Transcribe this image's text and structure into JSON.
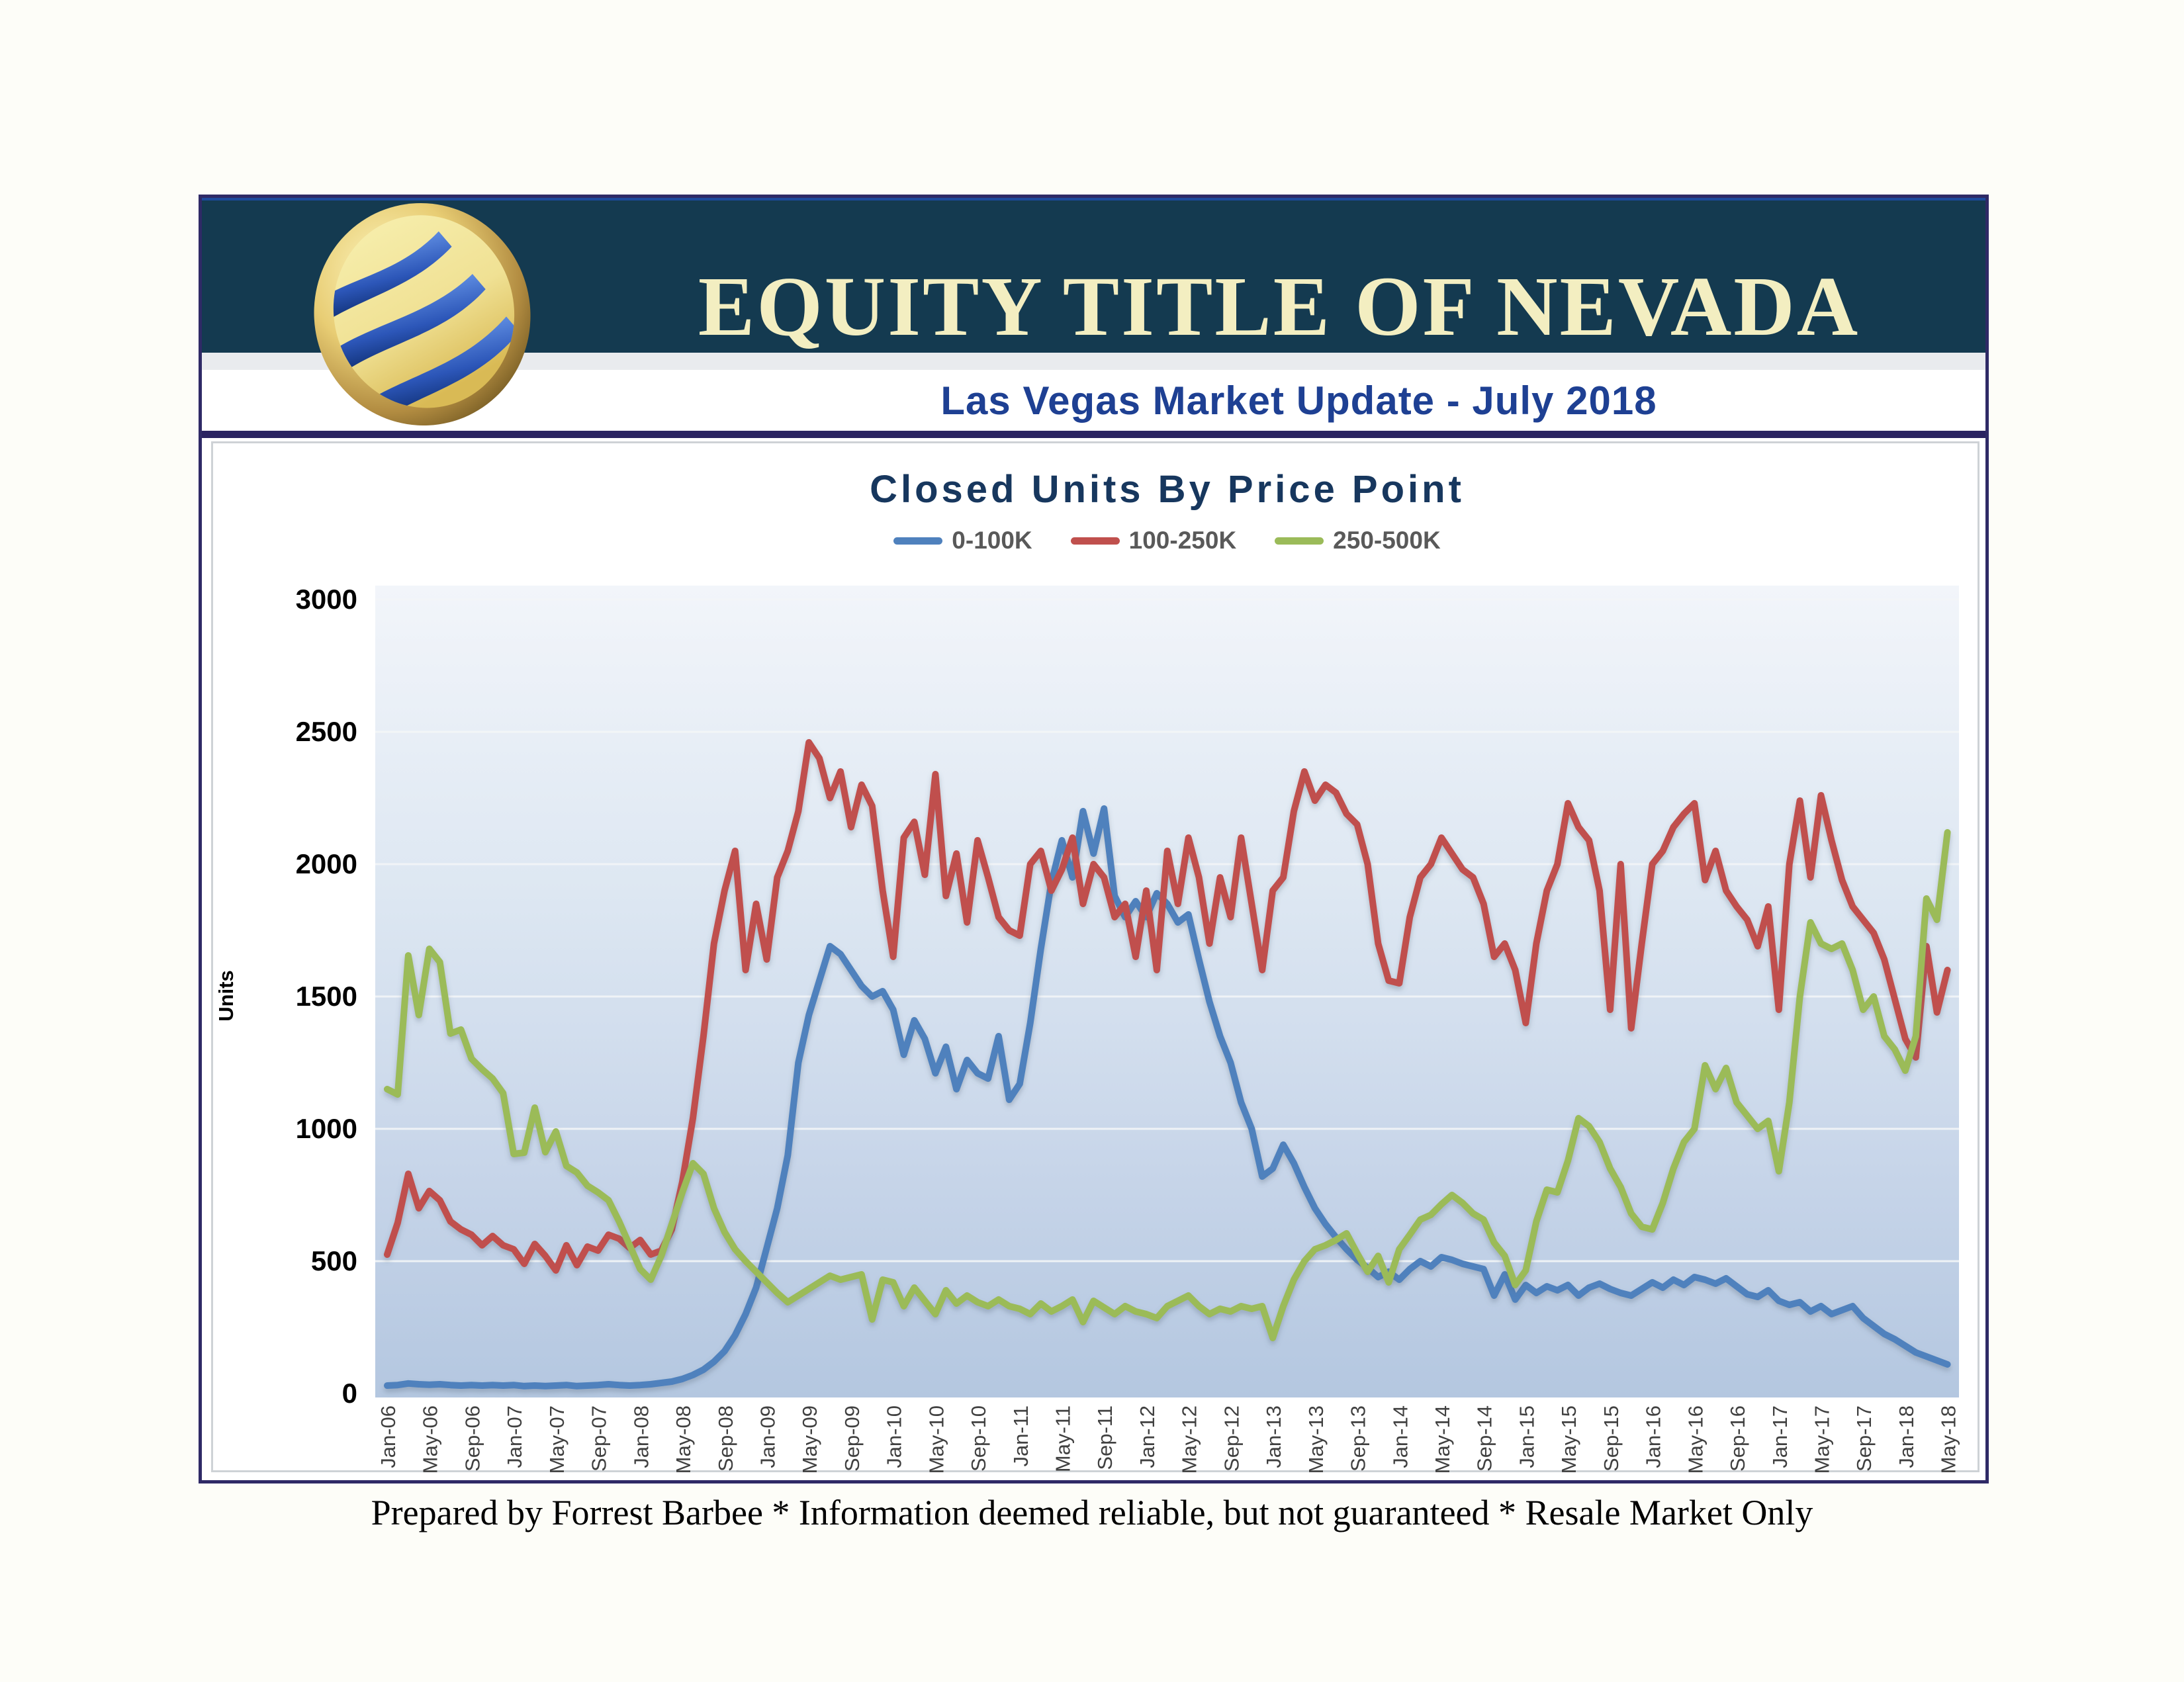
{
  "header": {
    "company": "EQUITY TITLE OF NEVADA",
    "subtitle": "Las Vegas Market Update - July 2018"
  },
  "footer": {
    "text": "Prepared by Forrest Barbee * Information deemed reliable, but not guaranteed * Resale Market Only"
  },
  "colors": {
    "header_band": "#143a50",
    "header_accent_line": "#1d4a9c",
    "outer_border": "#2f2a66",
    "header_rule": "#2a2361",
    "company_text": "#f3eec1",
    "subtitle_text": "#1e4093",
    "chart_title_text": "#17375e",
    "legend_text": "#595959",
    "axis_label_text": "#404040",
    "y_tick_text": "#000000",
    "plot_gradient_top": "#f2f5fa",
    "plot_gradient_bottom": "#b4c7e0",
    "gridline": "#f4f6f8",
    "series_blue": "#4f81bd",
    "series_red": "#c0504d",
    "series_green": "#9bbb59"
  },
  "chart_data": {
    "type": "line",
    "title": "Closed Units By Price Point",
    "ylabel": "Units",
    "ylim": [
      0,
      3000
    ],
    "y_ticks": [
      0,
      500,
      1000,
      1500,
      2000,
      2500,
      3000
    ],
    "grid": true,
    "legend_position": "top",
    "n_points": 149,
    "x_tick_step": 4,
    "x_tick_labels": [
      "Jan-06",
      "May-06",
      "Sep-06",
      "Jan-07",
      "May-07",
      "Sep-07",
      "Jan-08",
      "May-08",
      "Sep-08",
      "Jan-09",
      "May-09",
      "Sep-09",
      "Jan-10",
      "May-10",
      "Sep-10",
      "Jan-11",
      "May-11",
      "Sep-11",
      "Jan-12",
      "May-12",
      "Sep-12",
      "Jan-13",
      "May-13",
      "Sep-13",
      "Jan-14",
      "May-14",
      "Sep-14",
      "Jan-15",
      "May-15",
      "Sep-15",
      "Jan-16",
      "May-16",
      "Sep-16",
      "Jan-17",
      "May-17",
      "Sep-17",
      "Jan-18",
      "May-18"
    ],
    "series": [
      {
        "name": "0-100K",
        "color": "#4f81bd",
        "values": [
          30,
          32,
          38,
          35,
          33,
          35,
          32,
          30,
          32,
          30,
          32,
          30,
          32,
          28,
          30,
          28,
          30,
          32,
          28,
          30,
          32,
          35,
          32,
          30,
          32,
          35,
          40,
          45,
          55,
          70,
          90,
          120,
          160,
          220,
          300,
          400,
          550,
          700,
          900,
          1250,
          1430,
          1560,
          1690,
          1660,
          1600,
          1540,
          1500,
          1520,
          1450,
          1280,
          1410,
          1340,
          1210,
          1310,
          1150,
          1260,
          1210,
          1190,
          1350,
          1110,
          1170,
          1400,
          1680,
          1930,
          2090,
          1950,
          2200,
          2040,
          2210,
          1880,
          1800,
          1860,
          1800,
          1890,
          1850,
          1780,
          1810,
          1640,
          1480,
          1350,
          1250,
          1100,
          1000,
          820,
          850,
          940,
          870,
          780,
          700,
          640,
          590,
          545,
          505,
          475,
          440,
          460,
          430,
          470,
          500,
          480,
          515,
          505,
          490,
          480,
          470,
          370,
          450,
          355,
          410,
          380,
          405,
          390,
          410,
          370,
          400,
          415,
          395,
          380,
          370,
          395,
          420,
          400,
          430,
          410,
          440,
          430,
          415,
          435,
          405,
          375,
          365,
          390,
          350,
          335,
          345,
          310,
          330,
          300,
          315,
          330,
          285,
          255,
          225,
          205,
          180,
          155,
          140,
          125,
          110
        ]
      },
      {
        "name": "100-250K",
        "color": "#c0504d",
        "values": [
          525,
          645,
          830,
          700,
          765,
          730,
          650,
          620,
          600,
          560,
          595,
          560,
          545,
          490,
          565,
          520,
          465,
          560,
          485,
          555,
          540,
          600,
          585,
          550,
          580,
          525,
          540,
          620,
          800,
          1040,
          1350,
          1700,
          1900,
          2050,
          1600,
          1850,
          1640,
          1950,
          2050,
          2200,
          2460,
          2400,
          2250,
          2350,
          2140,
          2300,
          2220,
          1900,
          1650,
          2100,
          2160,
          1960,
          2340,
          1880,
          2040,
          1780,
          2090,
          1950,
          1800,
          1750,
          1730,
          2000,
          2050,
          1900,
          1980,
          2100,
          1850,
          2000,
          1950,
          1800,
          1850,
          1650,
          1900,
          1600,
          2050,
          1850,
          2100,
          1950,
          1700,
          1950,
          1800,
          2100,
          1850,
          1600,
          1900,
          1950,
          2200,
          2350,
          2240,
          2300,
          2270,
          2190,
          2150,
          2000,
          1700,
          1560,
          1550,
          1800,
          1950,
          2000,
          2100,
          2040,
          1980,
          1950,
          1850,
          1650,
          1700,
          1600,
          1400,
          1700,
          1900,
          2000,
          2230,
          2140,
          2090,
          1900,
          1450,
          2000,
          1380,
          1700,
          2000,
          2050,
          2140,
          2190,
          2230,
          1940,
          2050,
          1900,
          1840,
          1790,
          1690,
          1840,
          1450,
          2000,
          2240,
          1950,
          2260,
          2090,
          1940,
          1840,
          1790,
          1740,
          1640,
          1490,
          1340,
          1270,
          1690,
          1440,
          1600
        ]
      },
      {
        "name": "250-500K",
        "color": "#9bbb59",
        "values": [
          1150,
          1130,
          1655,
          1430,
          1680,
          1630,
          1360,
          1375,
          1265,
          1225,
          1190,
          1135,
          905,
          910,
          1080,
          912,
          990,
          860,
          835,
          785,
          760,
          730,
          650,
          560,
          470,
          430,
          520,
          640,
          760,
          870,
          830,
          700,
          610,
          545,
          500,
          460,
          420,
          380,
          345,
          370,
          395,
          420,
          445,
          430,
          440,
          450,
          280,
          430,
          420,
          330,
          400,
          350,
          300,
          390,
          340,
          370,
          345,
          330,
          355,
          330,
          320,
          300,
          340,
          310,
          330,
          355,
          270,
          350,
          325,
          300,
          330,
          310,
          300,
          285,
          330,
          350,
          370,
          330,
          300,
          320,
          310,
          330,
          320,
          330,
          210,
          330,
          430,
          500,
          545,
          560,
          580,
          605,
          530,
          460,
          520,
          420,
          545,
          600,
          657,
          675,
          715,
          750,
          720,
          680,
          657,
          570,
          520,
          410,
          465,
          650,
          770,
          760,
          880,
          1040,
          1010,
          950,
          850,
          780,
          680,
          630,
          620,
          720,
          850,
          950,
          1000,
          1240,
          1150,
          1230,
          1100,
          1050,
          1000,
          1030,
          840,
          1100,
          1500,
          1780,
          1700,
          1680,
          1700,
          1600,
          1450,
          1500,
          1350,
          1300,
          1220,
          1350,
          1870,
          1790,
          2120
        ]
      }
    ]
  }
}
